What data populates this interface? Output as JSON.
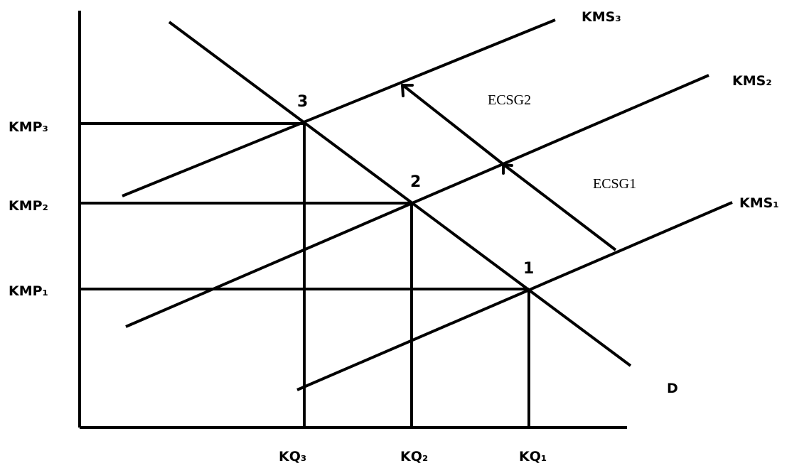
{
  "curves": {
    "supply_3": "KMS₃",
    "supply_2": "KMS₂",
    "supply_1": "KMS₁",
    "demand": "D"
  },
  "price_labels": {
    "p3": "KMP₃",
    "p2": "KMP₂",
    "p1": "KMP₁"
  },
  "quantity_labels": {
    "q3": "KQ₃",
    "q2": "KQ₂",
    "q1": "KQ₁"
  },
  "points": {
    "p1": "1",
    "p2": "2",
    "p3": "3"
  },
  "shifts": {
    "shift_1": "ECSG1",
    "shift_2": "ECSG2"
  }
}
